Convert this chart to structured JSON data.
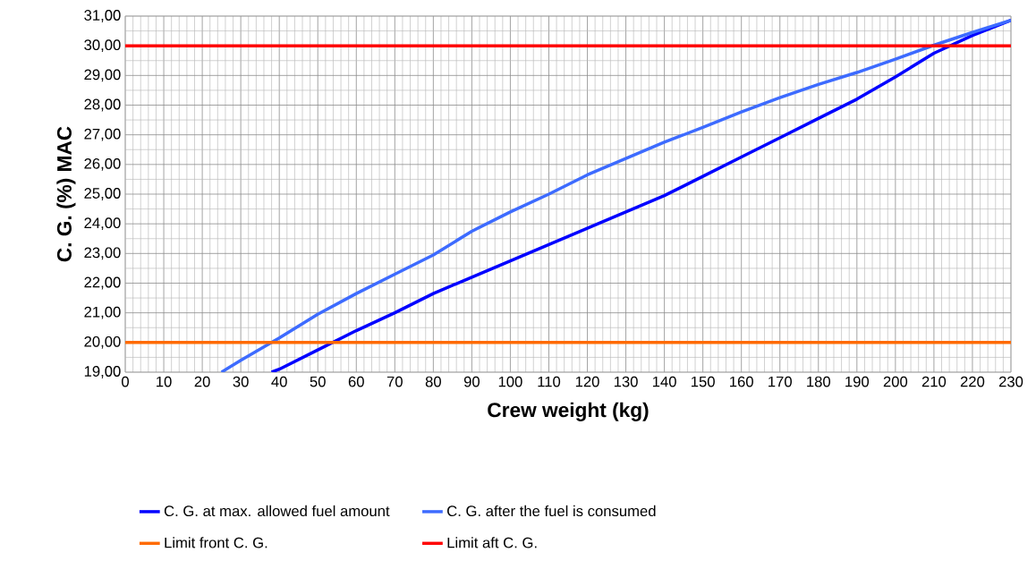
{
  "chart_data": {
    "type": "line",
    "xlabel": "Crew weight (kg)",
    "ylabel": "C. G. (%) MAC",
    "xlim": [
      0,
      230
    ],
    "ylim": [
      19,
      31
    ],
    "xticks": [
      0,
      10,
      20,
      30,
      40,
      50,
      60,
      70,
      80,
      90,
      100,
      110,
      120,
      130,
      140,
      150,
      160,
      170,
      180,
      190,
      200,
      210,
      220,
      230
    ],
    "yticks": [
      {
        "value": 19,
        "label": "19,00"
      },
      {
        "value": 20,
        "label": "20,00"
      },
      {
        "value": 21,
        "label": "21,00"
      },
      {
        "value": 22,
        "label": "22,00"
      },
      {
        "value": 23,
        "label": "23,00"
      },
      {
        "value": 24,
        "label": "24,00"
      },
      {
        "value": 25,
        "label": "25,00"
      },
      {
        "value": 26,
        "label": "26,00"
      },
      {
        "value": 27,
        "label": "27,00"
      },
      {
        "value": 28,
        "label": "28,00"
      },
      {
        "value": 29,
        "label": "29,00"
      },
      {
        "value": 30,
        "label": "30,00"
      },
      {
        "value": 31,
        "label": "31,00"
      }
    ],
    "grid": true,
    "legend": "bottom",
    "series": [
      {
        "name": "C. G. at max. allowed fuel amount",
        "color": "#0000ff",
        "x": [
          38,
          40,
          50,
          60,
          70,
          80,
          90,
          100,
          110,
          120,
          130,
          140,
          150,
          160,
          170,
          180,
          190,
          200,
          210,
          220,
          230
        ],
        "values": [
          19.0,
          19.1,
          19.75,
          20.4,
          21.0,
          21.65,
          22.2,
          22.75,
          23.3,
          23.85,
          24.4,
          24.95,
          25.6,
          26.25,
          26.9,
          27.55,
          28.2,
          28.95,
          29.75,
          30.35,
          30.86
        ]
      },
      {
        "name": "C. G. after the fuel is consumed",
        "color": "#3d6bff",
        "x": [
          25,
          30,
          38,
          40,
          50,
          60,
          70,
          80,
          90,
          100,
          110,
          120,
          130,
          140,
          150,
          160,
          170,
          180,
          190,
          200,
          210,
          220,
          230
        ],
        "values": [
          19.0,
          19.4,
          20.0,
          20.15,
          20.95,
          21.65,
          22.3,
          22.95,
          23.75,
          24.4,
          25.0,
          25.65,
          26.2,
          26.75,
          27.25,
          27.77,
          28.25,
          28.7,
          29.1,
          29.55,
          30.02,
          30.45,
          30.86
        ]
      },
      {
        "name": "Limit front C. G.",
        "color": "#ff6a00",
        "x": [
          0,
          230
        ],
        "values": [
          20,
          20
        ]
      },
      {
        "name": "Limit aft C. G.",
        "color": "#ff0000",
        "x": [
          0,
          230
        ],
        "values": [
          30,
          30
        ]
      }
    ]
  }
}
